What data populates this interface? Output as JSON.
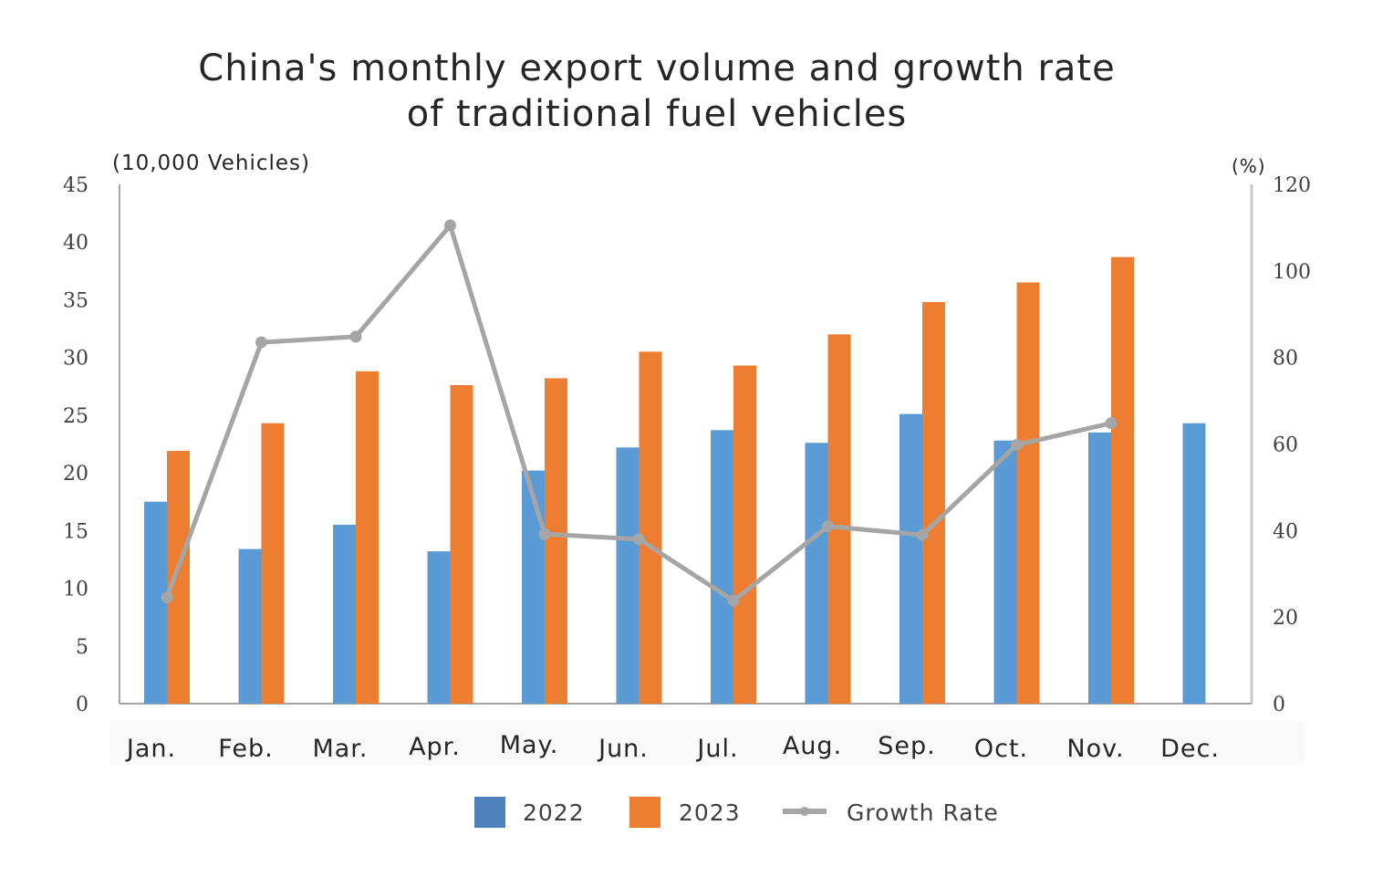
{
  "chart_data": {
    "type": "bar",
    "title": [
      "China's monthly export volume and growth rate",
      "of traditional fuel vehicles"
    ],
    "ylabel_left": "(10,000 Vehicles)",
    "ylabel_right": "(%)",
    "ylim_left": [
      0,
      45
    ],
    "ylim_right": [
      0,
      120
    ],
    "left_ticks": [
      "0",
      "5",
      "10",
      "15",
      "20",
      "25",
      "30",
      "35",
      "40",
      "45"
    ],
    "right_ticks": [
      "0",
      "20",
      "40",
      "60",
      "80",
      "100",
      "120"
    ],
    "categories": [
      "Jan.",
      "Feb.",
      "Mar.",
      "Apr.",
      "May.",
      "Jun.",
      "Jul.",
      "Aug.",
      "Sep.",
      "Oct.",
      "Nov.",
      "Dec."
    ],
    "series": [
      {
        "name": "2022",
        "axis": "left",
        "type": "bar",
        "color": "#5b9bd5",
        "values": [
          17.5,
          13.4,
          15.5,
          13.2,
          20.2,
          22.2,
          23.7,
          22.6,
          25.1,
          22.8,
          23.5,
          24.3
        ]
      },
      {
        "name": "2023",
        "axis": "left",
        "type": "bar",
        "color": "#ed7d31",
        "values": [
          21.9,
          24.3,
          28.8,
          27.6,
          28.2,
          30.5,
          29.3,
          32.0,
          34.8,
          36.5,
          38.7,
          null
        ]
      },
      {
        "name": "Growth Rate",
        "axis": "right",
        "type": "line",
        "color": "#a5a5a5",
        "values": [
          24.5,
          83.5,
          84.8,
          110.5,
          39.2,
          38.0,
          23.8,
          41.0,
          39.0,
          59.8,
          64.8,
          null
        ]
      }
    ],
    "legend": [
      {
        "label": "2022",
        "color": "#4f81bd",
        "kind": "box"
      },
      {
        "label": "2023",
        "color": "#ed7d31",
        "kind": "box"
      },
      {
        "label": "Growth Rate",
        "color": "#a5a5a5",
        "kind": "line"
      }
    ],
    "legend_position": "bottom",
    "grid": false
  }
}
